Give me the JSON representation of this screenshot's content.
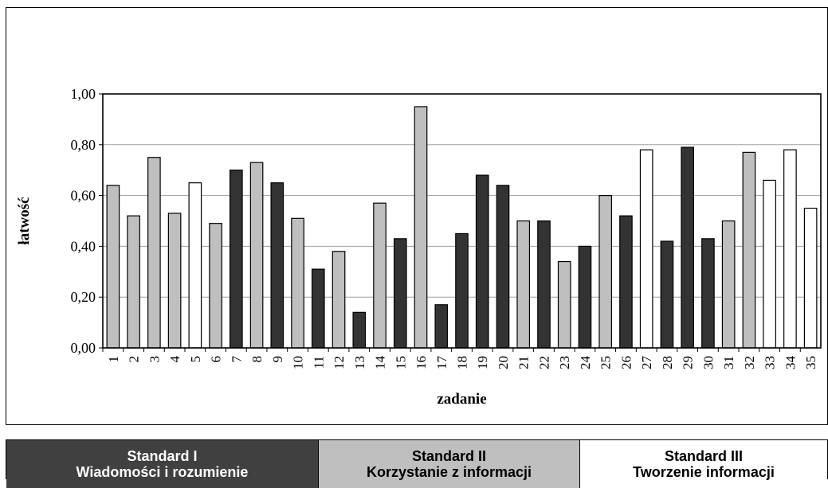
{
  "chart_data": {
    "type": "bar",
    "xlabel": "zadanie",
    "ylabel": "łatwość",
    "ylim": [
      0,
      1
    ],
    "yticks": [
      "0,00",
      "0,20",
      "0,40",
      "0,60",
      "0,80",
      "1,00"
    ],
    "grid": true,
    "categories": [
      "1",
      "2",
      "3",
      "4",
      "5",
      "6",
      "7",
      "8",
      "9",
      "10",
      "11",
      "12",
      "13",
      "14",
      "15",
      "16",
      "17",
      "18",
      "19",
      "20",
      "21",
      "22",
      "23",
      "24",
      "25",
      "26",
      "27",
      "28",
      "29",
      "30",
      "31",
      "32",
      "33",
      "34",
      "35"
    ],
    "values": [
      0.64,
      0.52,
      0.75,
      0.53,
      0.65,
      0.49,
      0.7,
      0.73,
      0.65,
      0.51,
      0.31,
      0.38,
      0.14,
      0.57,
      0.43,
      0.95,
      0.17,
      0.45,
      0.68,
      0.64,
      0.5,
      0.5,
      0.34,
      0.4,
      0.6,
      0.52,
      0.78,
      0.42,
      0.79,
      0.43,
      0.5,
      0.77,
      0.66,
      0.78,
      0.55
    ],
    "standards": [
      2,
      2,
      2,
      2,
      3,
      2,
      1,
      2,
      1,
      2,
      1,
      2,
      1,
      2,
      1,
      2,
      1,
      1,
      1,
      1,
      2,
      1,
      2,
      1,
      2,
      1,
      3,
      1,
      1,
      1,
      2,
      2,
      3,
      3,
      3
    ]
  },
  "legend": {
    "items": [
      {
        "line1": "Standard I",
        "line2": "Wiadomości i rozumienie",
        "bg": "#404040",
        "fg": "#ffffff"
      },
      {
        "line1": "Standard II",
        "line2": "Korzystanie z informacji",
        "bg": "#bfbfbf",
        "fg": "#000000"
      },
      {
        "line1": "Standard III",
        "line2": "Tworzenie informacji",
        "bg": "#ffffff",
        "fg": "#000000"
      }
    ]
  }
}
